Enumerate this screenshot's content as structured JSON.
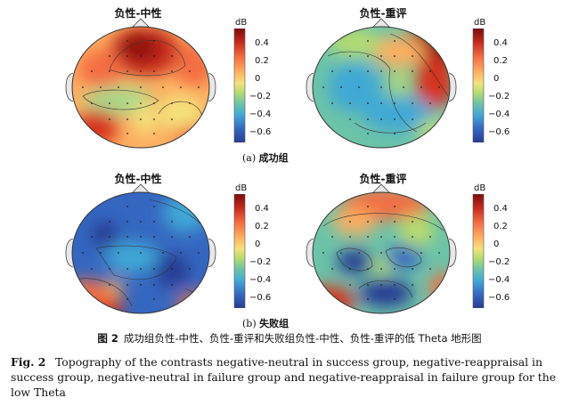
{
  "panels": [
    {
      "title": "负性-中性"
    },
    {
      "title": "负性-重评"
    },
    {
      "title": "负性-中性"
    },
    {
      "title": "负性-重评"
    }
  ],
  "colorbar": {
    "unit": "dB",
    "ticks": [
      "0.4",
      "0.2",
      "0",
      "−0.2",
      "−0.4",
      "−0.6"
    ],
    "colors": [
      "#7a0c0c",
      "#d7301f",
      "#f46d43",
      "#fdae61",
      "#fee08b",
      "#d9ef8b",
      "#a6d96a",
      "#66c2a5",
      "#3288bd",
      "#3060b8",
      "#283b93"
    ]
  },
  "subcaptions": {
    "a_label": "(a)",
    "a_text": "成功组",
    "b_label": "(b)",
    "b_text": "失败组"
  },
  "figure_caption": {
    "cn_label": "图 2",
    "cn_text": "成功组负性-中性、负性-重评和失败组负性-中性、负性-重评的低 Theta 地形图",
    "en_label": "Fig. 2",
    "en_text": "Topography of the contrasts negative-neutral in success group, negative-reappraisal in success group, negative-neutral in failure group and negative-reappraisal in failure group for the low Theta"
  }
}
